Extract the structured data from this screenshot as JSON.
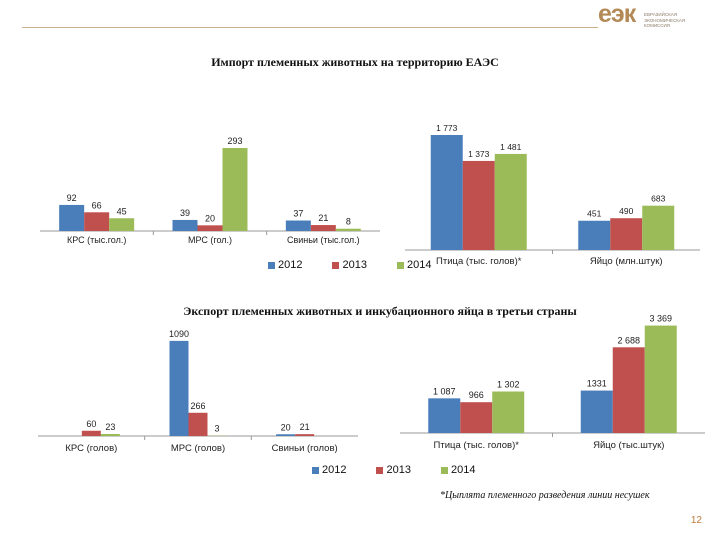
{
  "logo": {
    "text": "еэк",
    "subtitle": "ЕВРАЗИЙСКАЯ ЭКОНОМИЧЕСКАЯ КОМИССИЯ"
  },
  "import_title": "Импорт племенных животных на территорию ЕАЭС",
  "export_title": "Экспорт племенных животных и инкубационного яйца в третьи страны",
  "legend": [
    "2012",
    "2013",
    "2014"
  ],
  "colors": {
    "y2012": "#4a7ebb",
    "y2013": "#c0504d",
    "y2014": "#9bbb59"
  },
  "footnote": "*Цыплята племенного разведения линии несушек",
  "page_number": "12",
  "chart_data": [
    {
      "type": "bar",
      "id": "import_livestock",
      "title": "",
      "categories": [
        "КРС (тыс.гол.)",
        "МРС (гол.)",
        "Свиньи (тыс.гол.)"
      ],
      "series": [
        {
          "name": "2012",
          "values": [
            92,
            39,
            37
          ],
          "labels": [
            "92",
            "39",
            "37"
          ]
        },
        {
          "name": "2013",
          "values": [
            66,
            20,
            21
          ],
          "labels": [
            "66",
            "20",
            "21"
          ]
        },
        {
          "name": "2014",
          "values": [
            45,
            293,
            8
          ],
          "labels": [
            "45",
            "293",
            "8"
          ]
        }
      ],
      "ylim": [
        0,
        300
      ],
      "grid": false
    },
    {
      "type": "bar",
      "id": "import_poultry",
      "title": "",
      "categories": [
        "Птица (тыс. голов)*",
        "Яйцо (млн.штук)"
      ],
      "series": [
        {
          "name": "2012",
          "values": [
            1773,
            451
          ],
          "labels": [
            "1 773",
            "451"
          ]
        },
        {
          "name": "2013",
          "values": [
            1373,
            490
          ],
          "labels": [
            "1 373",
            "490"
          ]
        },
        {
          "name": "2014",
          "values": [
            1481,
            683
          ],
          "labels": [
            "1 481",
            "683"
          ]
        }
      ],
      "ylim": [
        0,
        1850
      ],
      "grid": false
    },
    {
      "type": "bar",
      "id": "export_livestock",
      "title": "",
      "categories": [
        "КРС (голов)",
        "МРС (голов)",
        "Свиньи (голов)"
      ],
      "series": [
        {
          "name": "2012",
          "values": [
            0,
            1090,
            20
          ],
          "labels": [
            "",
            "1090",
            "20"
          ]
        },
        {
          "name": "2013",
          "values": [
            60,
            266,
            21
          ],
          "labels": [
            "60",
            "266",
            "21"
          ]
        },
        {
          "name": "2014",
          "values": [
            23,
            3,
            0
          ],
          "labels": [
            "23",
            "3",
            ""
          ]
        }
      ],
      "ylim": [
        0,
        1100
      ],
      "grid": false
    },
    {
      "type": "bar",
      "id": "export_poultry",
      "title": "",
      "categories": [
        "Птица (тыс. голов)*",
        "Яйцо (тыс.штук)"
      ],
      "series": [
        {
          "name": "2012",
          "values": [
            1087,
            1331
          ],
          "labels": [
            "1 087",
            "1331"
          ]
        },
        {
          "name": "2013",
          "values": [
            966,
            2688
          ],
          "labels": [
            "966",
            "2 688"
          ]
        },
        {
          "name": "2014",
          "values": [
            1302,
            3369
          ],
          "labels": [
            "1 302",
            "3 369"
          ]
        }
      ],
      "ylim": [
        0,
        3450
      ],
      "grid": false
    }
  ]
}
